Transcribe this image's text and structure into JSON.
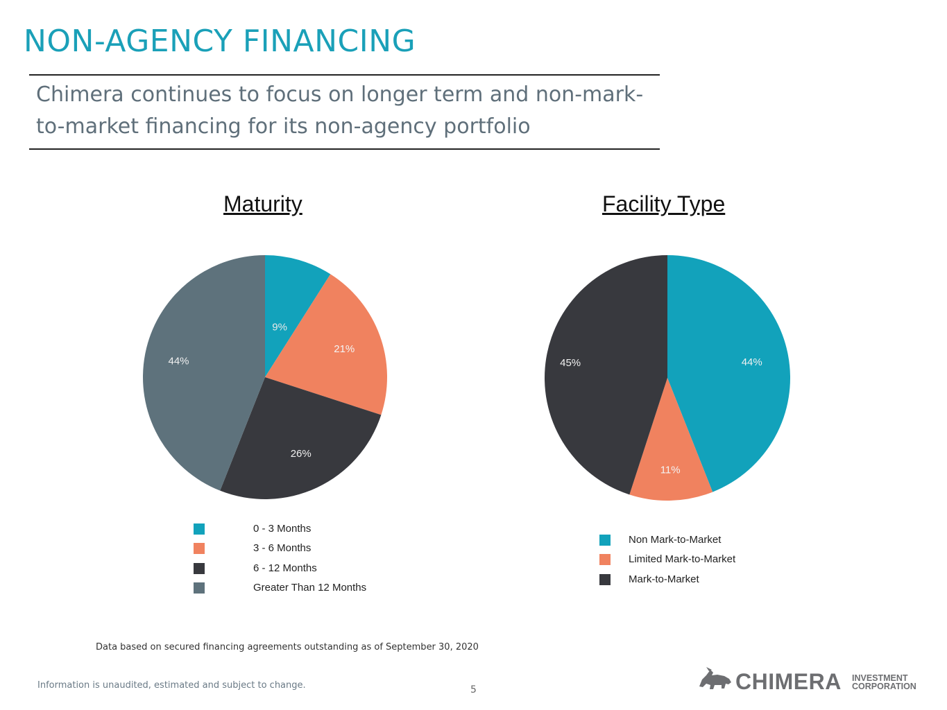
{
  "slide": {
    "title": "NON-AGENCY FINANCING",
    "subtitle": "Chimera continues to focus on longer term and non-mark-to-market financing for its non-agency portfolio",
    "footnote": "Data based on secured financing agreements outstanding  as of September 30, 2020",
    "disclaimer": "Information is unaudited, estimated and subject to change.",
    "page_number": "5"
  },
  "logo": {
    "name": "CHIMERA",
    "subtitle_line1": "INVESTMENT",
    "subtitle_line2": "CORPORATION",
    "icon": "bull-icon"
  },
  "colors": {
    "title": "#1aa0b8",
    "teal": "#12a2bb",
    "orange": "#f0825f",
    "dark": "#38393e",
    "slate": "#5e727c"
  },
  "chart_data": [
    {
      "type": "pie",
      "title": "Maturity",
      "categories": [
        "0 - 3 Months",
        "3 - 6 Months",
        "6 - 12 Months",
        "Greater Than 12 Months"
      ],
      "values": [
        9,
        21,
        26,
        44
      ],
      "labels": [
        "9%",
        "21%",
        "26%",
        "44%"
      ],
      "colors": [
        "#12a2bb",
        "#f0825f",
        "#38393e",
        "#5e727c"
      ],
      "label_colors": [
        "#e8e8e8",
        "#f4f4f4",
        "#f0f0f0",
        "#f0f0f0"
      ],
      "start": "12 o'clock",
      "direction": "clockwise",
      "legend_position": "bottom"
    },
    {
      "type": "pie",
      "title": "Facility Type",
      "categories": [
        "Non Mark-to-Market",
        "Limited Mark-to-Market",
        "Mark-to-Market"
      ],
      "values": [
        44,
        11,
        45
      ],
      "labels": [
        "44%",
        "11%",
        "45%"
      ],
      "colors": [
        "#12a2bb",
        "#f0825f",
        "#38393e"
      ],
      "label_colors": [
        "#f0f0f0",
        "#f4f4f4",
        "#f0f0f0"
      ],
      "start": "12 o'clock",
      "direction": "clockwise",
      "legend_position": "bottom"
    }
  ]
}
